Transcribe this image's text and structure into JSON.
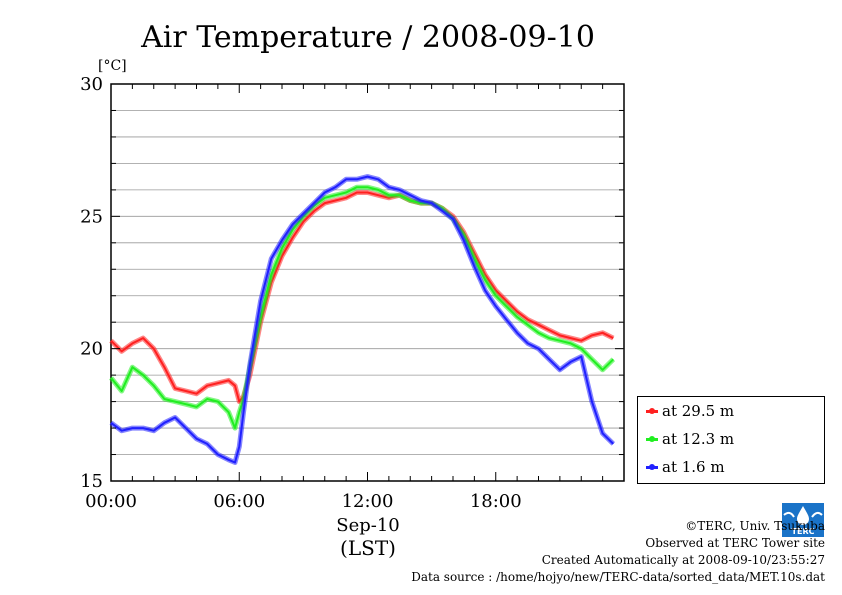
{
  "chart_data": {
    "type": "line",
    "title": "Air Temperature / 2008-09-10",
    "ylabel": "[°C]",
    "xlabel": "Sep-10",
    "xlabel2": "(LST)",
    "ylim": [
      15,
      30
    ],
    "xlim": [
      0,
      24
    ],
    "y_ticks": [
      15,
      20,
      25,
      30
    ],
    "x_ticks": [
      {
        "v": 0,
        "label": "00:00"
      },
      {
        "v": 6,
        "label": "06:00"
      },
      {
        "v": 12,
        "label": "12:00"
      },
      {
        "v": 18,
        "label": "18:00"
      }
    ],
    "grid": true,
    "legend_position": "right",
    "series": [
      {
        "name": "at 29.5 m",
        "color": "#ff2020",
        "x": [
          0,
          0.5,
          1,
          1.5,
          2,
          2.5,
          3,
          3.5,
          4,
          4.5,
          5,
          5.5,
          5.8,
          6,
          6.2,
          6.5,
          7,
          7.5,
          8,
          8.5,
          9,
          9.5,
          10,
          10.5,
          11,
          11.5,
          12,
          12.5,
          13,
          13.5,
          14,
          14.5,
          15,
          15.5,
          16,
          16.5,
          17,
          17.5,
          18,
          18.5,
          19,
          19.5,
          20,
          20.5,
          21,
          21.5,
          22,
          22.5,
          23,
          23.5
        ],
        "y": [
          20.3,
          19.9,
          20.2,
          20.4,
          20.0,
          19.3,
          18.5,
          18.4,
          18.3,
          18.6,
          18.7,
          18.8,
          18.6,
          18.0,
          18.2,
          19.0,
          21.0,
          22.5,
          23.5,
          24.2,
          24.8,
          25.2,
          25.5,
          25.6,
          25.7,
          25.9,
          25.9,
          25.8,
          25.7,
          25.8,
          25.6,
          25.5,
          25.5,
          25.3,
          25.0,
          24.4,
          23.6,
          22.8,
          22.2,
          21.8,
          21.4,
          21.1,
          20.9,
          20.7,
          20.5,
          20.4,
          20.3,
          20.5,
          20.6,
          20.4
        ]
      },
      {
        "name": "at 12.3 m",
        "color": "#20ee20",
        "x": [
          0,
          0.5,
          1,
          1.5,
          2,
          2.5,
          3,
          3.5,
          4,
          4.5,
          5,
          5.5,
          5.8,
          6,
          6.2,
          6.5,
          7,
          7.5,
          8,
          8.5,
          9,
          9.5,
          10,
          10.5,
          11,
          11.5,
          12,
          12.5,
          13,
          13.5,
          14,
          14.5,
          15,
          15.5,
          16,
          16.5,
          17,
          17.5,
          18,
          18.5,
          19,
          19.5,
          20,
          20.5,
          21,
          21.5,
          22,
          22.5,
          23,
          23.5
        ],
        "y": [
          18.9,
          18.4,
          19.3,
          19.0,
          18.6,
          18.1,
          18.0,
          17.9,
          17.8,
          18.1,
          18.0,
          17.6,
          17.0,
          17.6,
          18.1,
          19.3,
          21.2,
          22.8,
          23.8,
          24.5,
          25.0,
          25.4,
          25.7,
          25.8,
          25.9,
          26.1,
          26.1,
          26.0,
          25.8,
          25.8,
          25.6,
          25.5,
          25.5,
          25.3,
          24.9,
          24.3,
          23.4,
          22.6,
          22.0,
          21.6,
          21.2,
          20.9,
          20.6,
          20.4,
          20.3,
          20.2,
          20.0,
          19.6,
          19.2,
          19.6
        ]
      },
      {
        "name": "at 1.6 m",
        "color": "#2020ff",
        "x": [
          0,
          0.5,
          1,
          1.5,
          2,
          2.5,
          3,
          3.5,
          4,
          4.5,
          5,
          5.5,
          5.8,
          6,
          6.2,
          6.5,
          7,
          7.5,
          8,
          8.5,
          9,
          9.5,
          10,
          10.5,
          11,
          11.5,
          12,
          12.5,
          13,
          13.5,
          14,
          14.5,
          15,
          15.5,
          16,
          16.5,
          17,
          17.5,
          18,
          18.5,
          19,
          19.5,
          20,
          20.5,
          21,
          21.5,
          22,
          22.5,
          23,
          23.5
        ],
        "y": [
          17.2,
          16.9,
          17.0,
          17.0,
          16.9,
          17.2,
          17.4,
          17.0,
          16.6,
          16.4,
          16.0,
          15.8,
          15.7,
          16.3,
          17.6,
          19.4,
          21.8,
          23.4,
          24.1,
          24.7,
          25.1,
          25.5,
          25.9,
          26.1,
          26.4,
          26.4,
          26.5,
          26.4,
          26.1,
          26.0,
          25.8,
          25.6,
          25.5,
          25.2,
          24.9,
          24.1,
          23.1,
          22.2,
          21.6,
          21.1,
          20.6,
          20.2,
          20.0,
          19.6,
          19.2,
          19.5,
          19.7,
          18.0,
          16.8,
          16.4
        ]
      }
    ]
  },
  "credits": {
    "line1": "©TERC, Univ. Tsukuba",
    "line2": "Observed at TERC Tower site",
    "line3": "Created Automatically at 2008-09-10/23:55:27",
    "line4": "Data source : /home/hojyo/new/TERC-data/sorted_data/MET.10s.dat"
  },
  "logo": {
    "text": "TERC",
    "color": "#1a73c8"
  }
}
